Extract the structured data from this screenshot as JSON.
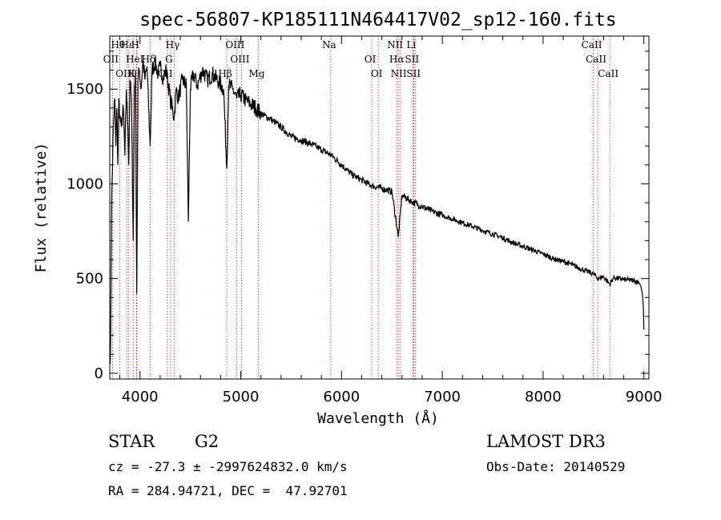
{
  "chart_data": {
    "type": "line",
    "title": "spec-56807-KP185111N464417V02_sp12-160.fits",
    "xlabel": "Wavelength (Å)",
    "ylabel": "Flux (relative)",
    "xlim": [
      3700,
      9050
    ],
    "ylim": [
      -30,
      1780
    ],
    "x_ticks": [
      4000,
      5000,
      6000,
      7000,
      8000,
      9000
    ],
    "x_tick_labels": [
      "4000",
      "5000",
      "6000",
      "7000",
      "8000",
      "9000"
    ],
    "y_ticks": [
      0,
      500,
      1000,
      1500
    ],
    "y_tick_labels": [
      "0",
      "500",
      "1000",
      "1500"
    ],
    "grid": false,
    "series": [
      {
        "name": "spectrum",
        "x": [
          3705,
          3712,
          3720,
          3735,
          3750,
          3760,
          3770,
          3780,
          3790,
          3800,
          3815,
          3835,
          3850,
          3865,
          3880,
          3889,
          3900,
          3915,
          3933,
          3945,
          3955,
          3968,
          3980,
          3995,
          4010,
          4030,
          4050,
          4070,
          4101,
          4120,
          4150,
          4180,
          4200,
          4230,
          4260,
          4300,
          4340,
          4360,
          4380,
          4420,
          4460,
          4480,
          4500,
          4530,
          4570,
          4620,
          4670,
          4720,
          4780,
          4830,
          4861,
          4880,
          4920,
          4960,
          5000,
          5050,
          5100,
          5150,
          5200,
          5300,
          5400,
          5500,
          5600,
          5700,
          5800,
          5900,
          6000,
          6100,
          6200,
          6300,
          6400,
          6500,
          6563,
          6600,
          6700,
          6800,
          6900,
          7000,
          7100,
          7200,
          7300,
          7400,
          7500,
          7600,
          7700,
          7800,
          7900,
          8000,
          8100,
          8200,
          8300,
          8400,
          8500,
          8542,
          8600,
          8662,
          8700,
          8800,
          8900,
          8950,
          8970,
          8985,
          8995,
          9000
        ],
        "values": [
          50,
          400,
          950,
          1300,
          1450,
          1200,
          1400,
          1100,
          1450,
          1350,
          1300,
          1400,
          1150,
          1500,
          1300,
          1100,
          1550,
          1450,
          700,
          1500,
          1600,
          420,
          1550,
          1600,
          1500,
          1650,
          1550,
          1620,
          1200,
          1600,
          1640,
          1580,
          1620,
          1560,
          1600,
          1450,
          1350,
          1500,
          1450,
          1550,
          1520,
          800,
          1500,
          1580,
          1520,
          1600,
          1550,
          1580,
          1540,
          1500,
          1080,
          1520,
          1500,
          1450,
          1470,
          1440,
          1420,
          1400,
          1370,
          1340,
          1300,
          1250,
          1230,
          1210,
          1180,
          1150,
          1100,
          1050,
          1020,
          990,
          975,
          960,
          720,
          940,
          905,
          880,
          855,
          835,
          815,
          795,
          775,
          755,
          735,
          715,
          690,
          670,
          650,
          630,
          605,
          590,
          570,
          545,
          525,
          500,
          510,
          470,
          505,
          495,
          490,
          480,
          460,
          420,
          350,
          230
        ]
      }
    ],
    "lines": [
      {
        "label": "Hθ",
        "x": 3798
      },
      {
        "label": "OII",
        "x": 3727
      },
      {
        "label": "OIII",
        "x": 3869
      },
      {
        "label": "Hε",
        "x": 3889
      },
      {
        "label": "HeI",
        "x": 3965
      },
      {
        "label": "K",
        "x": 3933
      },
      {
        "label": "H",
        "x": 3969
      },
      {
        "label": "Hδ",
        "x": 4101
      },
      {
        "label": "CII",
        "x": 4267
      },
      {
        "label": "Hγ",
        "x": 4340
      },
      {
        "label": "G",
        "x": 4304
      },
      {
        "label": "Hβ",
        "x": 4861
      },
      {
        "label": "OIII",
        "x": 4959
      },
      {
        "label": "OIII",
        "x": 5007
      },
      {
        "label": "Mg",
        "x": 5175
      },
      {
        "label": "Na",
        "x": 5893
      },
      {
        "label": "OI",
        "x": 6300
      },
      {
        "label": "OI",
        "x": 6364
      },
      {
        "label": "NII",
        "x": 6548
      },
      {
        "label": "Hα",
        "x": 6563
      },
      {
        "label": "NII",
        "x": 6583
      },
      {
        "label": "Li",
        "x": 6708
      },
      {
        "label": "SII",
        "x": 6716
      },
      {
        "label": "SII",
        "x": 6731
      },
      {
        "label": "CaII",
        "x": 8498
      },
      {
        "label": "CaII",
        "x": 8542
      },
      {
        "label": "CaII",
        "x": 8662
      }
    ]
  },
  "info": {
    "object_type": "STAR",
    "subclass": "G2",
    "survey": "LAMOST DR3",
    "redshift_line": "cz = -27.3 ± -2997624832.0 km/s",
    "obs_date": "Obs-Date: 20140529",
    "coords": "RA = 284.94721, DEC =  47.92701"
  }
}
